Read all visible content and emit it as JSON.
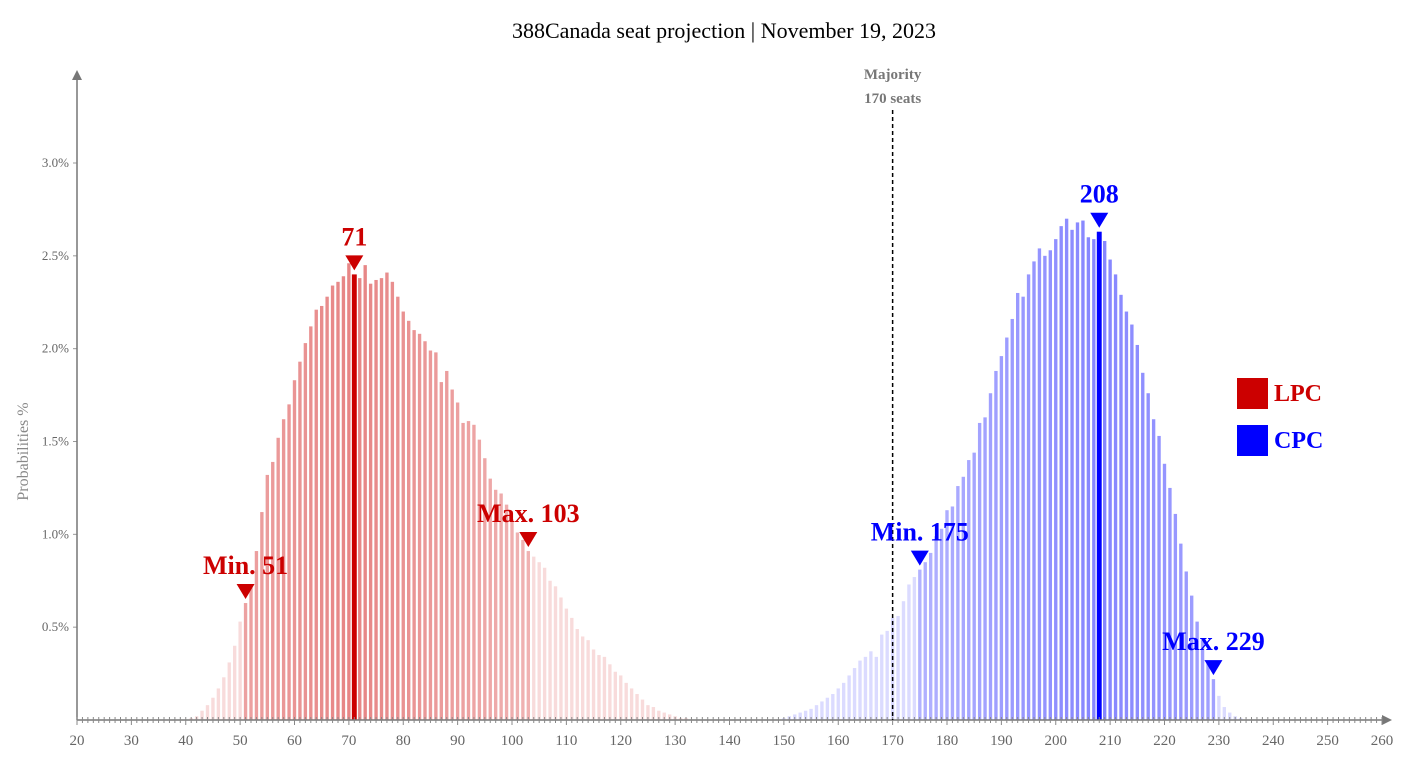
{
  "chart_data": {
    "type": "bar",
    "title": "388Canada seat projection | November 19, 2023",
    "ylabel": "Probabilities %",
    "xlim": [
      20,
      260
    ],
    "ylim": [
      0,
      3.0
    ],
    "x_ticks": [
      20,
      30,
      40,
      50,
      60,
      70,
      80,
      90,
      100,
      110,
      120,
      130,
      140,
      150,
      160,
      170,
      180,
      190,
      200,
      210,
      220,
      230,
      240,
      250,
      260
    ],
    "y_ticks": [
      {
        "value": 0.5,
        "label": "0.5%"
      },
      {
        "value": 1.0,
        "label": "1.0%"
      },
      {
        "value": 1.5,
        "label": "1.5%"
      },
      {
        "value": 2.0,
        "label": "2.0%"
      },
      {
        "value": 2.5,
        "label": "2.5%"
      },
      {
        "value": 3.0,
        "label": "3.0%"
      }
    ],
    "majority": {
      "value": 170,
      "label_line1": "Majority",
      "label_line2": "170 seats"
    },
    "colors": {
      "LPC": "#cc0000",
      "CPC": "#0000ff"
    },
    "series": [
      {
        "name": "LPC",
        "start_seat": 41,
        "median": 71,
        "median_label": "71",
        "min": 51,
        "min_label": "Min. 51",
        "max": 103,
        "max_label": "Max. 103",
        "values": [
          0.01,
          0.02,
          0.05,
          0.08,
          0.12,
          0.17,
          0.23,
          0.31,
          0.4,
          0.53,
          0.63,
          0.73,
          0.91,
          1.12,
          1.32,
          1.39,
          1.52,
          1.62,
          1.7,
          1.83,
          1.93,
          2.03,
          2.12,
          2.21,
          2.23,
          2.28,
          2.34,
          2.36,
          2.39,
          2.46,
          2.4,
          2.38,
          2.45,
          2.35,
          2.37,
          2.38,
          2.41,
          2.36,
          2.28,
          2.2,
          2.15,
          2.1,
          2.08,
          2.04,
          1.99,
          1.98,
          1.82,
          1.88,
          1.78,
          1.71,
          1.6,
          1.61,
          1.59,
          1.51,
          1.41,
          1.3,
          1.24,
          1.22,
          1.16,
          1.08,
          1.01,
          0.97,
          0.91,
          0.88,
          0.85,
          0.82,
          0.75,
          0.72,
          0.66,
          0.6,
          0.55,
          0.49,
          0.45,
          0.43,
          0.38,
          0.35,
          0.34,
          0.3,
          0.26,
          0.24,
          0.2,
          0.17,
          0.14,
          0.11,
          0.08,
          0.07,
          0.05,
          0.04,
          0.03,
          0.02,
          0.01,
          0.01
        ]
      },
      {
        "name": "CPC",
        "start_seat": 150,
        "median": 208,
        "median_label": "208",
        "min": 175,
        "min_label": "Min. 175",
        "max": 229,
        "max_label": "Max. 229",
        "values": [
          0.01,
          0.02,
          0.03,
          0.04,
          0.05,
          0.06,
          0.08,
          0.1,
          0.12,
          0.14,
          0.17,
          0.2,
          0.24,
          0.28,
          0.32,
          0.34,
          0.37,
          0.34,
          0.46,
          0.48,
          0.55,
          0.56,
          0.64,
          0.73,
          0.77,
          0.81,
          0.85,
          0.9,
          0.99,
          1.03,
          1.13,
          1.15,
          1.26,
          1.31,
          1.4,
          1.44,
          1.6,
          1.63,
          1.76,
          1.88,
          1.96,
          2.06,
          2.16,
          2.3,
          2.28,
          2.4,
          2.47,
          2.54,
          2.5,
          2.53,
          2.59,
          2.66,
          2.7,
          2.64,
          2.68,
          2.69,
          2.6,
          2.59,
          2.63,
          2.58,
          2.48,
          2.4,
          2.29,
          2.2,
          2.13,
          2.02,
          1.87,
          1.76,
          1.62,
          1.53,
          1.38,
          1.25,
          1.11,
          0.95,
          0.8,
          0.67,
          0.53,
          0.43,
          0.31,
          0.22,
          0.13,
          0.07,
          0.04,
          0.02,
          0.01
        ]
      }
    ],
    "legend": [
      {
        "name": "LPC",
        "color": "#cc0000"
      },
      {
        "name": "CPC",
        "color": "#0000ff"
      }
    ],
    "legend_position": "right"
  }
}
